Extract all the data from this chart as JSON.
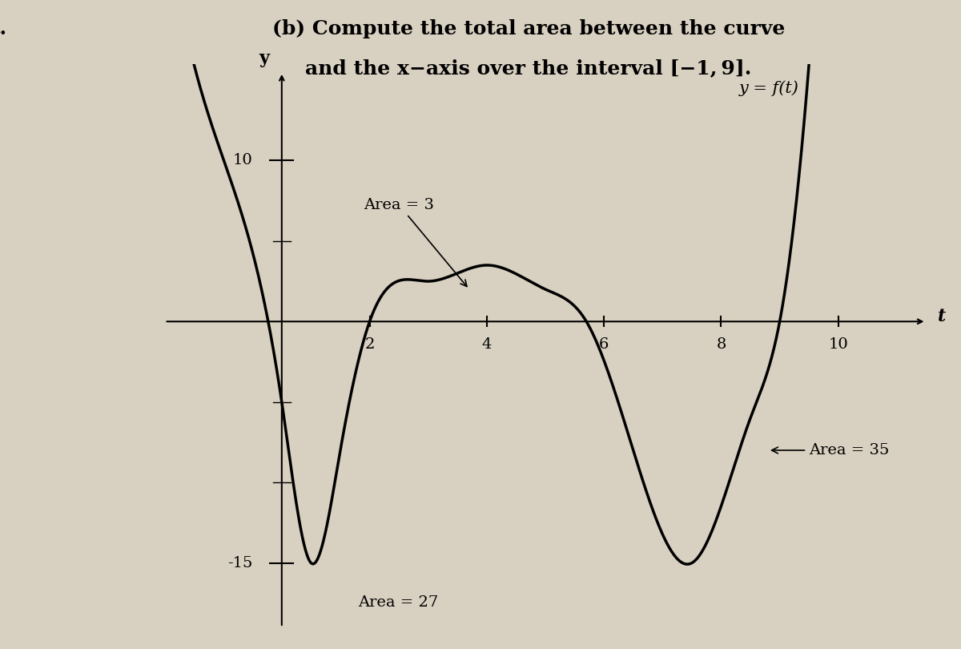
{
  "title_line1": "(b) Compute the total area between the curve",
  "title_line2": "and the x−axis over the interval [−1, 9].",
  "background_color": "#d8d0c0",
  "curve_color": "#000000",
  "axis_color": "#000000",
  "ylabel": "y",
  "xlabel": "t",
  "func_label": "y = f(t)",
  "area_labels": [
    "Area = 3",
    "Area = 27",
    "Area = 35"
  ],
  "tick_positions_x": [
    -1,
    0,
    2,
    4,
    6,
    8,
    10
  ],
  "tick_labels_x": [
    "",
    "",
    "2",
    "4",
    "6",
    "8",
    "10"
  ],
  "y_tick_10": 10,
  "y_tick_neg15": -15,
  "xlim": [
    -2,
    12
  ],
  "ylim": [
    -20,
    16
  ]
}
